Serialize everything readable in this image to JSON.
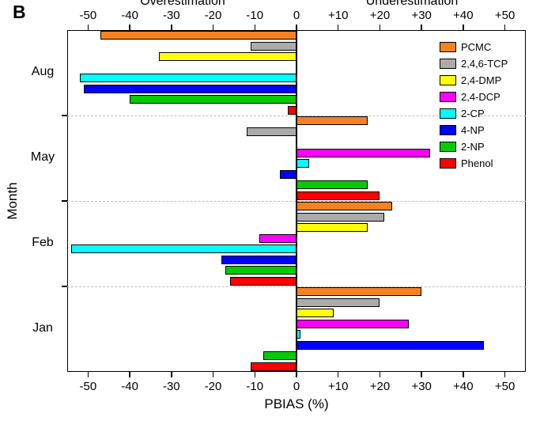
{
  "panel_label": "B",
  "axis": {
    "top_left_label": "Overestimation",
    "top_right_label": "Underestimation",
    "xlabel": "PBIAS (%)",
    "ylabel": "Month",
    "tick_values": [
      -50,
      -40,
      -30,
      -20,
      -10,
      0,
      10,
      20,
      30,
      40,
      50
    ],
    "tick_labels": [
      "-50",
      "-40",
      "-30",
      "-20",
      "-10",
      "0",
      "+10",
      "+20",
      "+30",
      "+40",
      "+50"
    ]
  },
  "chart_data": {
    "type": "bar",
    "orientation": "horizontal",
    "title": "",
    "xlabel": "PBIAS (%)",
    "ylabel": "Month",
    "xlim": [
      -55,
      55
    ],
    "x_ticks": [
      -50,
      -40,
      -30,
      -20,
      -10,
      0,
      10,
      20,
      30,
      40,
      50
    ],
    "grid": false,
    "legend_position": "top-right",
    "categories": [
      "Aug",
      "May",
      "Feb",
      "Jan"
    ],
    "series": [
      {
        "name": "PCMC",
        "color": "#F58220",
        "values": [
          -47,
          17,
          23,
          30
        ]
      },
      {
        "name": "2,4,6-TCP",
        "color": "#ABABAB",
        "values": [
          -11,
          -12,
          21,
          20
        ]
      },
      {
        "name": "2,4-DMP",
        "color": "#FFFF00",
        "values": [
          -33,
          0,
          17,
          9
        ]
      },
      {
        "name": "2,4-DCP",
        "color": "#FF00FF",
        "values": [
          0,
          32,
          -9,
          27
        ]
      },
      {
        "name": "2-CP",
        "color": "#00FFFF",
        "values": [
          -52,
          3,
          -54,
          1
        ]
      },
      {
        "name": "4-NP",
        "color": "#0000FF",
        "values": [
          -51,
          -4,
          -18,
          45
        ]
      },
      {
        "name": "2-NP",
        "color": "#00CC00",
        "values": [
          -40,
          17,
          -17,
          -8
        ]
      },
      {
        "name": "Phenol",
        "color": "#FF0000",
        "values": [
          -2,
          20,
          -16,
          -11
        ]
      }
    ]
  }
}
